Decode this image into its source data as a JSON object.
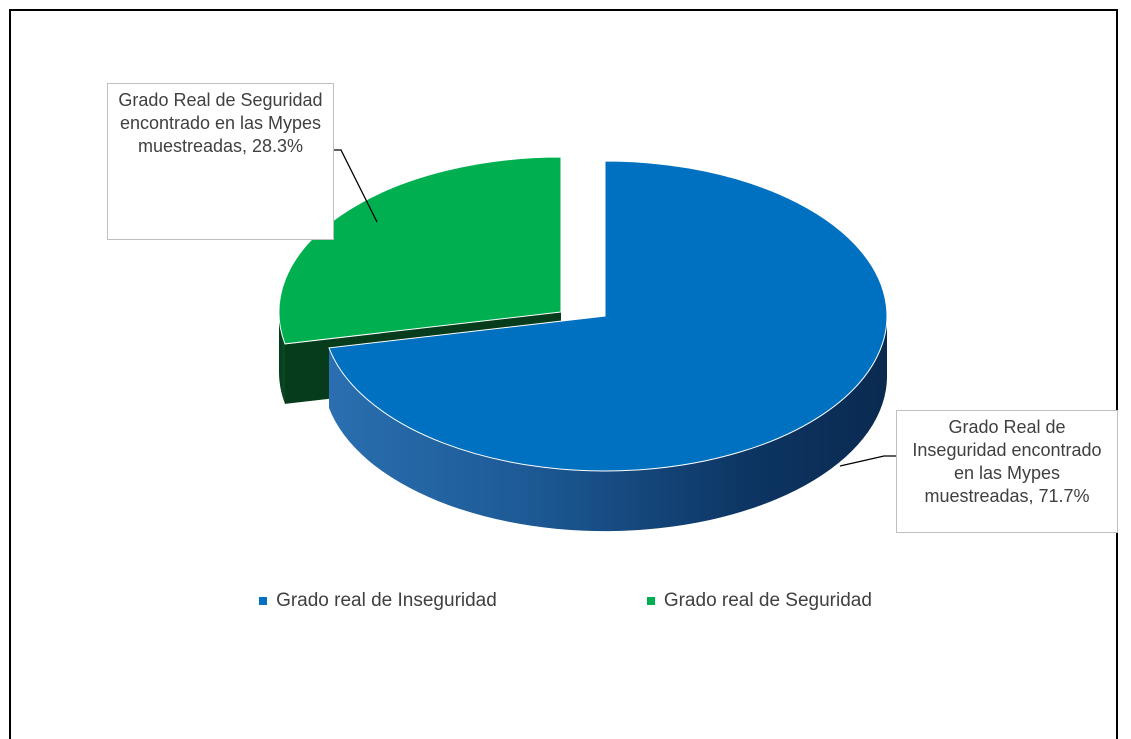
{
  "chart_data": {
    "type": "pie",
    "style": "3d-exploded",
    "categories": [
      "Grado real de Inseguridad",
      "Grado real de Seguridad"
    ],
    "values": [
      71.7,
      28.3
    ],
    "units": "%",
    "colors": [
      "#0070c0",
      "#00b050"
    ],
    "data_labels": [
      "Grado Real de Inseguridad encontrado en las Mypes muestreadas, 71.7%",
      "Grado Real de Seguridad encontrado en las Mypes muestreadas, 28.3%"
    ],
    "legend": {
      "position": "bottom",
      "entries": [
        "Grado real de Inseguridad",
        "Grado real de Seguridad"
      ]
    }
  }
}
